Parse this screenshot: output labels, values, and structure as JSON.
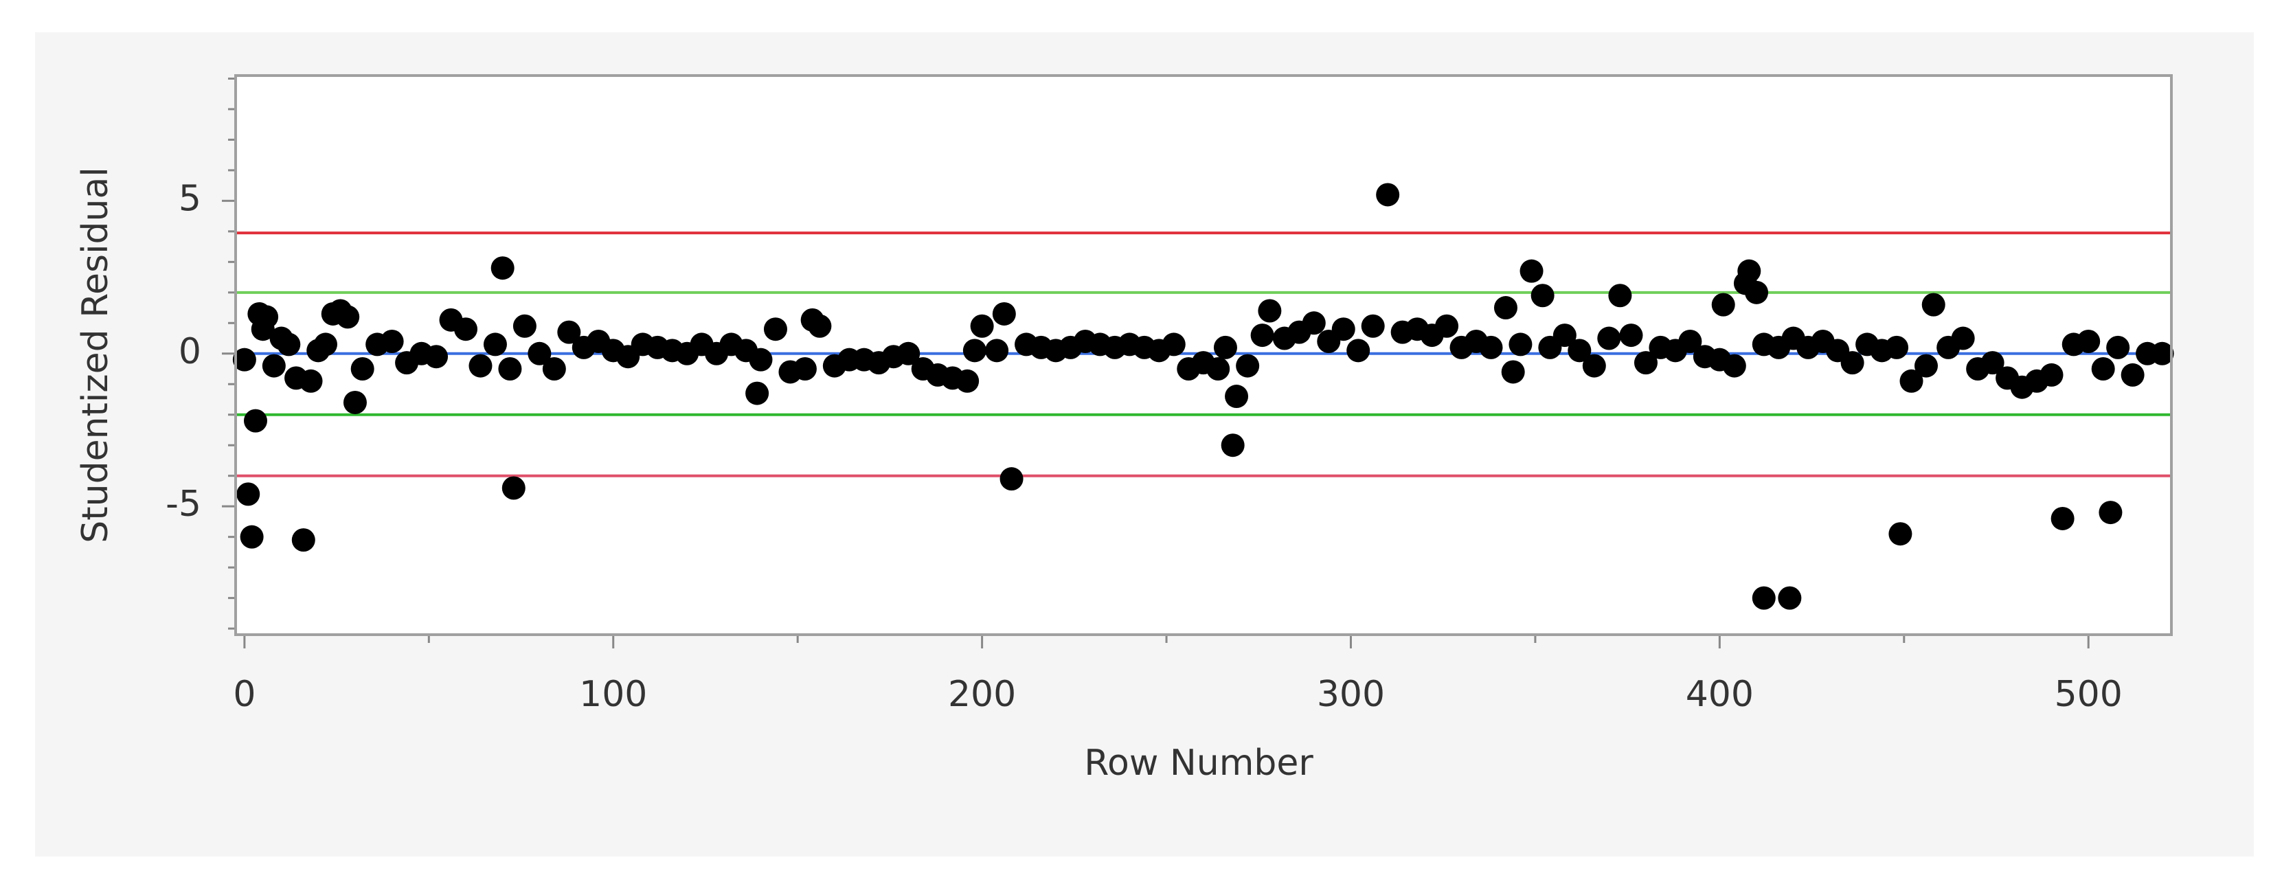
{
  "chart_data": {
    "type": "scatter",
    "x_label": "Row Number",
    "y_label": "Studentized Residual",
    "xlim": [
      -2.4,
      522.5
    ],
    "ylim": [
      -9.2,
      9.1
    ],
    "xticks": [
      0,
      100,
      200,
      300,
      400,
      500
    ],
    "xminorticks": [
      50,
      150,
      250,
      350,
      450
    ],
    "yticks": [
      -5,
      0,
      5
    ],
    "yminorticks": [
      -9,
      -8,
      -7,
      -6,
      -4,
      -3,
      -2,
      -1,
      1,
      2,
      3,
      4,
      6,
      7,
      8,
      9
    ],
    "reference_lines": [
      {
        "value": 3.95,
        "color": "#e0303a"
      },
      {
        "value": 2,
        "color": "#6fcf5a"
      },
      {
        "value": 0,
        "color": "#3a6fe0"
      },
      {
        "value": -2,
        "color": "#2eb82e"
      },
      {
        "value": -4,
        "color": "#e0506a"
      }
    ],
    "series": [
      {
        "color": "#000000",
        "x": [
          0,
          5,
          8,
          10,
          12,
          14,
          18,
          20,
          22,
          24,
          26,
          28,
          32,
          36,
          40,
          44,
          48,
          52,
          56,
          60,
          64,
          68,
          72,
          76,
          80,
          84,
          88,
          92,
          96,
          100,
          104,
          108,
          112,
          116,
          120,
          124,
          128,
          132,
          136,
          140,
          144,
          148,
          152,
          154,
          156,
          160,
          164,
          168,
          172,
          176,
          180,
          184,
          188,
          192,
          196,
          198,
          200,
          204,
          206,
          212,
          216,
          220,
          224,
          228,
          232,
          236,
          240,
          244,
          248,
          252,
          256,
          260,
          264,
          266,
          272,
          276,
          278,
          282,
          286,
          290,
          294,
          298,
          302,
          306,
          314,
          318,
          322,
          326,
          330,
          334,
          338,
          344,
          346,
          354,
          358,
          362,
          366,
          370,
          376,
          380,
          384,
          388,
          392,
          396,
          400,
          404,
          412,
          416,
          420,
          424,
          428,
          432,
          436,
          440,
          444,
          448,
          452,
          456,
          462,
          466,
          470,
          474,
          478,
          482,
          486,
          490,
          496,
          500,
          504,
          508,
          512,
          516,
          520,
          1,
          2,
          3,
          4,
          6,
          16,
          30,
          70,
          73,
          139,
          208,
          268,
          269,
          310,
          342,
          349,
          352,
          373,
          401,
          407,
          408,
          410,
          412,
          419,
          449,
          458,
          493,
          506
        ],
        "values": [
          -0.2,
          0.8,
          -0.4,
          0.5,
          0.3,
          -0.8,
          -0.9,
          0.1,
          0.3,
          1.3,
          1.4,
          1.2,
          -0.5,
          0.3,
          0.4,
          -0.3,
          0,
          -0.1,
          1.1,
          0.8,
          -0.4,
          0.3,
          -0.5,
          0.9,
          0,
          -0.5,
          0.7,
          0.2,
          0.4,
          0.1,
          -0.1,
          0.3,
          0.2,
          0.1,
          0,
          0.3,
          0,
          0.3,
          0.1,
          -0.2,
          0.8,
          -0.6,
          -0.5,
          1.1,
          0.9,
          -0.4,
          -0.2,
          -0.2,
          -0.3,
          -0.1,
          0,
          -0.5,
          -0.7,
          -0.8,
          -0.9,
          0.1,
          0.9,
          0.1,
          1.3,
          0.3,
          0.2,
          0.1,
          0.2,
          0.4,
          0.3,
          0.2,
          0.3,
          0.2,
          0.1,
          0.3,
          -0.5,
          -0.3,
          -0.5,
          0.2,
          -0.4,
          0.6,
          1.4,
          0.5,
          0.7,
          1.0,
          0.4,
          0.8,
          0.1,
          0.9,
          0.7,
          0.8,
          0.6,
          0.9,
          0.2,
          0.4,
          0.2,
          -0.6,
          0.3,
          0.2,
          0.6,
          0.1,
          -0.4,
          0.5,
          0.6,
          -0.3,
          0.2,
          0.1,
          0.4,
          -0.1,
          -0.2,
          -0.4,
          0.3,
          0.2,
          0.5,
          0.2,
          0.4,
          0.1,
          -0.3,
          0.3,
          0.1,
          0.2,
          -0.9,
          -0.4,
          0.2,
          0.5,
          -0.5,
          -0.3,
          -0.8,
          -1.1,
          -0.9,
          -0.7,
          0.3,
          0.4,
          -0.5,
          0.2,
          -0.7,
          0,
          0,
          -4.6,
          -6.0,
          -2.2,
          1.3,
          1.2,
          -6.1,
          -1.6,
          2.8,
          -4.4,
          -1.3,
          -4.1,
          -3.0,
          -1.4,
          5.2,
          1.5,
          2.7,
          1.9,
          1.9,
          1.6,
          2.3,
          2.7,
          2.0,
          -8.0,
          -8.0,
          -5.9,
          1.6,
          -5.4,
          -5.2
        ]
      }
    ]
  }
}
